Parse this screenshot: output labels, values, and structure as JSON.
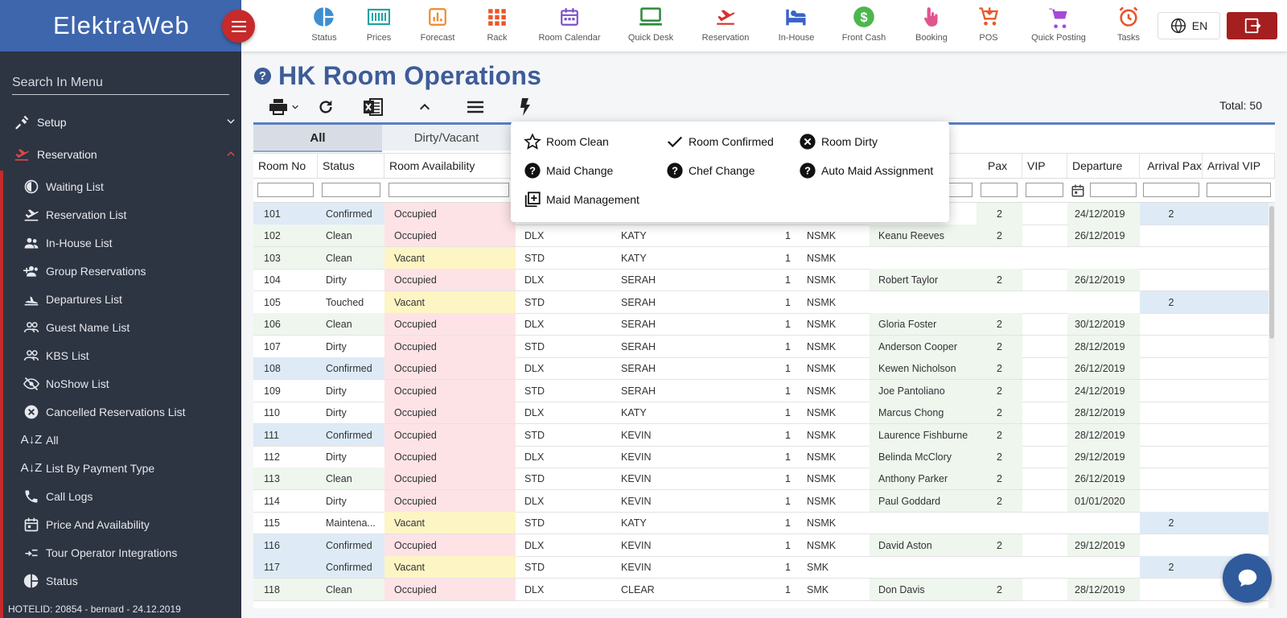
{
  "brand": {
    "name": "ElektraWeb"
  },
  "sidebar": {
    "search_placeholder": "Search In Menu",
    "groups": [
      {
        "label": "Setup",
        "icon": "setup-icon",
        "expanded": false
      },
      {
        "label": "Reservation",
        "icon": "reservation-icon",
        "expanded": true
      }
    ],
    "items": [
      {
        "label": "Waiting List",
        "icon": "waiting-list-icon"
      },
      {
        "label": "Reservation List",
        "icon": "reservation-list-icon"
      },
      {
        "label": "In-House List",
        "icon": "in-house-list-icon"
      },
      {
        "label": "Group Reservations",
        "icon": "group-reservations-icon"
      },
      {
        "label": "Departures List",
        "icon": "departures-icon"
      },
      {
        "label": "Guest Name List",
        "icon": "guest-name-icon"
      },
      {
        "label": "KBS List",
        "icon": "kbs-icon"
      },
      {
        "label": "NoShow List",
        "icon": "noshow-icon"
      },
      {
        "label": "Cancelled Reservations List",
        "icon": "cancelled-icon"
      },
      {
        "label": "All",
        "icon": "sort-az-icon"
      },
      {
        "label": "List By Payment Type",
        "icon": "sort-az-icon"
      },
      {
        "label": "Call Logs",
        "icon": "phone-icon"
      },
      {
        "label": "Price And Availability",
        "icon": "calendar-icon"
      },
      {
        "label": "Tour Operator Integrations",
        "icon": "integration-icon"
      },
      {
        "label": "Status",
        "icon": "pie-icon"
      }
    ],
    "footer": "HOTELID: 20854 - bernard - 24.12.2019"
  },
  "topbar": {
    "items": [
      {
        "label": "Status",
        "icon": "status-pie-icon",
        "color": "#3d8fd1"
      },
      {
        "label": "Prices",
        "icon": "prices-icon",
        "color": "#1fa3a3"
      },
      {
        "label": "Forecast",
        "icon": "forecast-icon",
        "color": "#f08a2c"
      },
      {
        "label": "Rack",
        "icon": "rack-icon",
        "color": "#e8572a"
      },
      {
        "label": "Room Calendar",
        "icon": "room-calendar-icon",
        "color": "#7b52c7"
      },
      {
        "label": "Quick Desk",
        "icon": "quick-desk-icon",
        "color": "#2e8b3a"
      },
      {
        "label": "Reservation",
        "icon": "reservation-plane-icon",
        "color": "#d9302c"
      },
      {
        "label": "In-House",
        "icon": "in-house-bed-icon",
        "color": "#3a63c8"
      },
      {
        "label": "Front Cash",
        "icon": "front-cash-icon",
        "color": "#4cb74e"
      },
      {
        "label": "Booking",
        "icon": "booking-icon",
        "color": "#e0558f"
      },
      {
        "label": "POS",
        "icon": "pos-icon",
        "color": "#e65a2a"
      },
      {
        "label": "Quick Posting",
        "icon": "quick-posting-icon",
        "color": "#a54ad6"
      },
      {
        "label": "Tasks",
        "icon": "tasks-alarm-icon",
        "color": "#e8532a"
      }
    ],
    "language": "EN"
  },
  "page": {
    "title": "HK Room Operations",
    "total_label": "Total:",
    "total_value": "50"
  },
  "tabs": [
    {
      "label": "All",
      "active": true
    },
    {
      "label": "Dirty/Vacant",
      "active": false
    }
  ],
  "columns": {
    "room_no": "Room No",
    "status": "Status",
    "availability": "Room Availability",
    "pax": "Pax",
    "vip": "VIP",
    "departure": "Departure",
    "arrival_pax": "Arrival Pax",
    "arrival_vip": "Arrival VIP"
  },
  "action_menu": [
    {
      "label": "Room Clean",
      "icon": "star-outline-icon"
    },
    {
      "label": "Room Confirmed",
      "icon": "check-icon"
    },
    {
      "label": "Room Dirty",
      "icon": "close-circle-icon"
    },
    {
      "label": "Maid Change",
      "icon": "help-circle-icon"
    },
    {
      "label": "Chef Change",
      "icon": "help-circle-icon"
    },
    {
      "label": "Auto Maid Assignment",
      "icon": "help-circle-icon"
    },
    {
      "label": "Maid Management",
      "icon": "library-add-icon"
    }
  ],
  "colors": {
    "confirmed": "#deebf7",
    "clean": "#e7f3e8",
    "dirty": "#fde3e6",
    "vacant": "#fdf5c4",
    "accent": "#3d5c99",
    "brand": "#3e66ad",
    "danger": "#c62a2a"
  },
  "rows": [
    {
      "room": "101",
      "status": "Confirmed",
      "avail": "Occupied",
      "type": "",
      "maid": "",
      "count": "",
      "smk": "",
      "guest": "",
      "pax": "2",
      "dep": "24/12/2019",
      "apax": "2"
    },
    {
      "room": "102",
      "status": "Clean",
      "avail": "Occupied",
      "type": "DLX",
      "maid": "KATY",
      "count": "1",
      "smk": "NSMK",
      "guest": "Keanu Reeves",
      "pax": "2",
      "dep": "26/12/2019",
      "apax": ""
    },
    {
      "room": "103",
      "status": "Clean",
      "avail": "Vacant",
      "type": "STD",
      "maid": "KATY",
      "count": "1",
      "smk": "NSMK",
      "guest": "",
      "pax": "",
      "dep": "",
      "apax": ""
    },
    {
      "room": "104",
      "status": "Dirty",
      "avail": "Occupied",
      "type": "DLX",
      "maid": "SERAH",
      "count": "1",
      "smk": "NSMK",
      "guest": "Robert Taylor",
      "pax": "2",
      "dep": "26/12/2019",
      "apax": ""
    },
    {
      "room": "105",
      "status": "Touched",
      "avail": "Vacant",
      "type": "STD",
      "maid": "SERAH",
      "count": "1",
      "smk": "NSMK",
      "guest": "",
      "pax": "",
      "dep": "",
      "apax": "2"
    },
    {
      "room": "106",
      "status": "Clean",
      "avail": "Occupied",
      "type": "DLX",
      "maid": "SERAH",
      "count": "1",
      "smk": "NSMK",
      "guest": "Gloria Foster",
      "pax": "2",
      "dep": "30/12/2019",
      "apax": ""
    },
    {
      "room": "107",
      "status": "Dirty",
      "avail": "Occupied",
      "type": "STD",
      "maid": "SERAH",
      "count": "1",
      "smk": "NSMK",
      "guest": "Anderson Cooper",
      "pax": "2",
      "dep": "28/12/2019",
      "apax": ""
    },
    {
      "room": "108",
      "status": "Confirmed",
      "avail": "Occupied",
      "type": "DLX",
      "maid": "SERAH",
      "count": "1",
      "smk": "NSMK",
      "guest": "Kewen Nicholson",
      "pax": "2",
      "dep": "26/12/2019",
      "apax": ""
    },
    {
      "room": "109",
      "status": "Dirty",
      "avail": "Occupied",
      "type": "STD",
      "maid": "SERAH",
      "count": "1",
      "smk": "NSMK",
      "guest": "Joe Pantoliano",
      "pax": "2",
      "dep": "24/12/2019",
      "apax": ""
    },
    {
      "room": "110",
      "status": "Dirty",
      "avail": "Occupied",
      "type": "DLX",
      "maid": "KATY",
      "count": "1",
      "smk": "NSMK",
      "guest": "Marcus Chong",
      "pax": "2",
      "dep": "28/12/2019",
      "apax": ""
    },
    {
      "room": "111",
      "status": "Confirmed",
      "avail": "Occupied",
      "type": "STD",
      "maid": "KEVIN",
      "count": "1",
      "smk": "NSMK",
      "guest": "Laurence Fishburne",
      "pax": "2",
      "dep": "28/12/2019",
      "apax": ""
    },
    {
      "room": "112",
      "status": "Dirty",
      "avail": "Occupied",
      "type": "DLX",
      "maid": "KEVIN",
      "count": "1",
      "smk": "NSMK",
      "guest": "Belinda McClory",
      "pax": "2",
      "dep": "29/12/2019",
      "apax": ""
    },
    {
      "room": "113",
      "status": "Clean",
      "avail": "Occupied",
      "type": "STD",
      "maid": "KEVIN",
      "count": "1",
      "smk": "NSMK",
      "guest": "Anthony Parker",
      "pax": "2",
      "dep": "26/12/2019",
      "apax": ""
    },
    {
      "room": "114",
      "status": "Dirty",
      "avail": "Occupied",
      "type": "DLX",
      "maid": "KEVIN",
      "count": "1",
      "smk": "NSMK",
      "guest": "Paul Goddard",
      "pax": "2",
      "dep": "01/01/2020",
      "apax": ""
    },
    {
      "room": "115",
      "status": "Maintena...",
      "avail": "Vacant",
      "type": "STD",
      "maid": "KATY",
      "count": "1",
      "smk": "NSMK",
      "guest": "",
      "pax": "",
      "dep": "",
      "apax": "2"
    },
    {
      "room": "116",
      "status": "Confirmed",
      "avail": "Occupied",
      "type": "DLX",
      "maid": "KEVIN",
      "count": "1",
      "smk": "NSMK",
      "guest": "David Aston",
      "pax": "2",
      "dep": "29/12/2019",
      "apax": ""
    },
    {
      "room": "117",
      "status": "Confirmed",
      "avail": "Vacant",
      "type": "STD",
      "maid": "KEVIN",
      "count": "1",
      "smk": "SMK",
      "guest": "",
      "pax": "",
      "dep": "",
      "apax": "2"
    },
    {
      "room": "118",
      "status": "Clean",
      "avail": "Occupied",
      "type": "DLX",
      "maid": "CLEAR",
      "count": "1",
      "smk": "SMK",
      "guest": "Don Davis",
      "pax": "2",
      "dep": "28/12/2019",
      "apax": ""
    }
  ]
}
